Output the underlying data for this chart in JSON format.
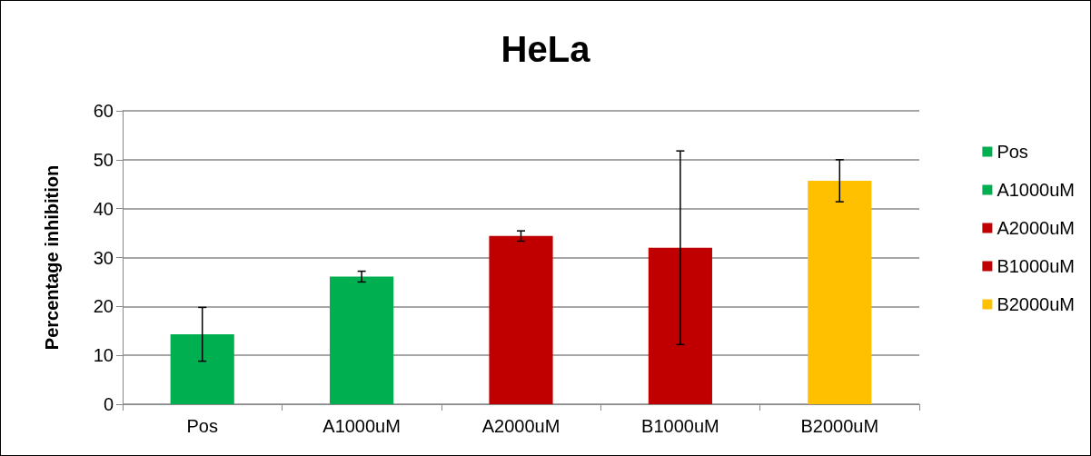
{
  "chart_data": {
    "type": "bar",
    "title": "HeLa",
    "ylabel": "Percentage inhibition",
    "categories": [
      "Pos",
      "A1000uM",
      "A2000uM",
      "B1000uM",
      "B2000uM"
    ],
    "stacked": true,
    "series": [
      {
        "name": "Pos",
        "color": "#00b050",
        "values": [
          14.3,
          null,
          null,
          null,
          null
        ],
        "errors": [
          5.5,
          null,
          null,
          null,
          null
        ]
      },
      {
        "name": "A1000uM",
        "color": "#00b050",
        "values": [
          null,
          26.1,
          null,
          null,
          null
        ],
        "errors": [
          null,
          1.1,
          null,
          null,
          null
        ]
      },
      {
        "name": "A2000uM",
        "color": "#c00000",
        "values": [
          null,
          null,
          34.4,
          null,
          null
        ],
        "errors": [
          null,
          null,
          1.05,
          null,
          null
        ]
      },
      {
        "name": "B1000uM",
        "color": "#c00000",
        "values": [
          null,
          null,
          null,
          32.0,
          null
        ],
        "errors": [
          null,
          null,
          null,
          19.8,
          null
        ]
      },
      {
        "name": "B2000uM",
        "color": "#ffc000",
        "values": [
          null,
          null,
          null,
          null,
          45.7
        ],
        "errors": [
          null,
          null,
          null,
          null,
          4.3
        ]
      }
    ],
    "ylim": [
      0,
      60
    ],
    "yticks": [
      0,
      10,
      20,
      30,
      40,
      50,
      60
    ],
    "grid": "y",
    "legend": "right"
  }
}
